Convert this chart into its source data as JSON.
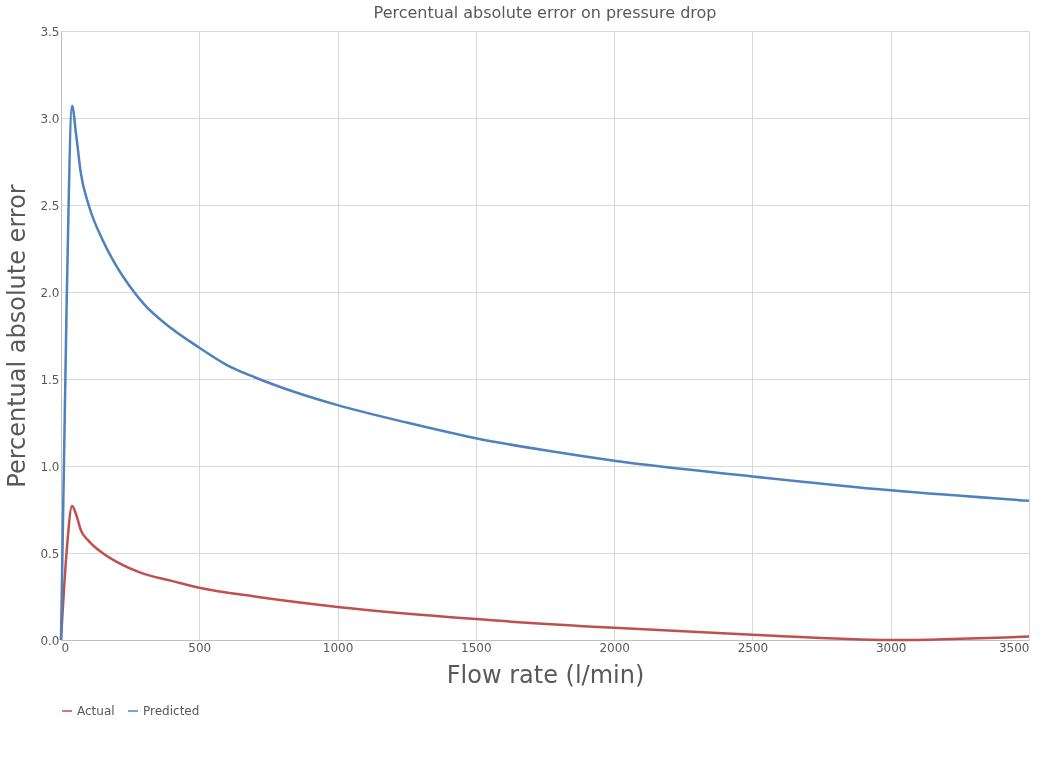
{
  "chart_data": {
    "type": "line",
    "title": "Percentual absolute error on pressure drop",
    "xlabel": "Flow rate (l/min)",
    "ylabel": "Percentual absolute error",
    "xlim": [
      0,
      3500
    ],
    "xticks": [
      0,
      500,
      1000,
      1500,
      2000,
      2500,
      3000,
      3500
    ],
    "ylim": [
      0,
      3.5
    ],
    "yticks": [
      {
        "value": 0,
        "label": "0.0"
      },
      {
        "value": 0.5,
        "label": "0.5"
      },
      {
        "value": 1,
        "label": "1.0"
      },
      {
        "value": 1.5,
        "label": "1.5"
      },
      {
        "value": 2,
        "label": "2.0"
      },
      {
        "value": 2.5,
        "label": "2.5"
      },
      {
        "value": 3,
        "label": "3.0"
      },
      {
        "value": 3.5,
        "label": "3.5"
      }
    ],
    "grid": true,
    "legend": "bottom",
    "marker": "none",
    "line_style": "solid",
    "series": [
      {
        "name": "Actual",
        "color": "#c0504d",
        "x": [
          0,
          20,
          40,
          55,
          72,
          100,
          150,
          200,
          300,
          400,
          500,
          700,
          1000,
          1500,
          2000,
          2500,
          3000,
          3500
        ],
        "values": [
          0,
          0.5,
          0.77,
          0.72,
          0.63,
          0.57,
          0.5,
          0.45,
          0.38,
          0.34,
          0.3,
          0.25,
          0.19,
          0.12,
          0.07,
          0.03,
          0.0,
          0.02
        ]
      },
      {
        "name": "Predicted",
        "color": "#4f81bd",
        "x": [
          0,
          20,
          40,
          55,
          72,
          100,
          150,
          200,
          250,
          300,
          400,
          500,
          600,
          700,
          800,
          1000,
          1250,
          1500,
          1750,
          2000,
          2500,
          3000,
          3500
        ],
        "values": [
          0,
          1.9,
          3.07,
          2.9,
          2.68,
          2.5,
          2.3,
          2.15,
          2.03,
          1.93,
          1.79,
          1.68,
          1.58,
          1.51,
          1.45,
          1.35,
          1.25,
          1.16,
          1.09,
          1.03,
          0.94,
          0.86,
          0.8
        ]
      }
    ]
  }
}
